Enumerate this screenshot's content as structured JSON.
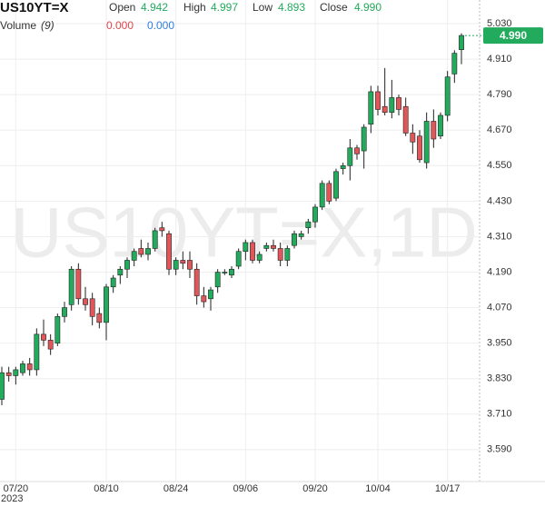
{
  "chart_data": {
    "type": "candlestick",
    "title": "US10YT=X",
    "watermark": "US10YT=X,1D",
    "stats": [
      {
        "name": "Open",
        "value": {
          "value": 4.942,
          "label": "4.942"
        }
      },
      {
        "name": "High",
        "value": {
          "value": 4.997,
          "label": "4.997"
        }
      },
      {
        "name": "Low",
        "value": {
          "value": 4.893,
          "label": "4.893"
        }
      },
      {
        "name": "Close",
        "value": {
          "value": 4.99,
          "label": "4.990"
        }
      }
    ],
    "volume": {
      "name": "Volume",
      "period": "(9)",
      "values": [
        {
          "value": 0,
          "label": "0.000",
          "color": "#e0474c"
        },
        {
          "value": 0,
          "label": "0.000",
          "color": "#2f7fe0"
        }
      ]
    },
    "last_price": {
      "value": 4.99,
      "label": "4.990"
    },
    "year_label": "2023",
    "up_color": "#22ab5c",
    "down_color": "#e0575a",
    "grid": true,
    "ylim": [
      3.482,
      5.11
    ],
    "yticks": [
      {
        "value": 3.59,
        "label": "3.590"
      },
      {
        "value": 3.71,
        "label": "3.710"
      },
      {
        "value": 3.83,
        "label": "3.830"
      },
      {
        "value": 3.95,
        "label": "3.950"
      },
      {
        "value": 4.07,
        "label": "4.070"
      },
      {
        "value": 4.19,
        "label": "4.190"
      },
      {
        "value": 4.31,
        "label": "4.310"
      },
      {
        "value": 4.43,
        "label": "4.430"
      },
      {
        "value": 4.55,
        "label": "4.550"
      },
      {
        "value": 4.67,
        "label": "4.670"
      },
      {
        "value": 4.79,
        "label": "4.790"
      },
      {
        "value": 4.91,
        "label": "4.910"
      },
      {
        "value": 5.03,
        "label": "5.030"
      }
    ],
    "categories": [
      null,
      null,
      "07/20",
      null,
      null,
      null,
      null,
      null,
      null,
      null,
      null,
      null,
      null,
      null,
      null,
      "08/10",
      null,
      null,
      null,
      null,
      null,
      null,
      null,
      null,
      null,
      "08/24",
      null,
      null,
      null,
      null,
      null,
      null,
      null,
      null,
      null,
      "09/06",
      null,
      null,
      null,
      null,
      null,
      null,
      null,
      null,
      null,
      "09/20",
      null,
      null,
      null,
      null,
      null,
      null,
      null,
      null,
      "10/04",
      null,
      null,
      null,
      null,
      null,
      null,
      null,
      null,
      null,
      "10/17",
      null,
      null
    ],
    "open": [
      3.76,
      3.85,
      3.84,
      3.85,
      3.88,
      3.86,
      3.98,
      3.96,
      3.95,
      4.04,
      4.08,
      4.2,
      4.1,
      4.1,
      4.05,
      4.02,
      4.14,
      4.18,
      4.2,
      4.23,
      4.27,
      4.25,
      4.27,
      4.34,
      4.32,
      4.2,
      4.23,
      4.23,
      4.2,
      4.11,
      4.1,
      4.14,
      4.19,
      4.18,
      4.21,
      4.26,
      4.29,
      4.23,
      4.27,
      4.28,
      4.27,
      4.23,
      4.28,
      4.31,
      4.34,
      4.36,
      4.41,
      4.49,
      4.44,
      4.54,
      4.55,
      4.61,
      4.6,
      4.69,
      4.8,
      4.75,
      4.73,
      4.78,
      4.75,
      4.66,
      4.65,
      4.56,
      4.7,
      4.65,
      4.72,
      4.86,
      4.942
    ],
    "high": [
      3.87,
      3.87,
      3.87,
      3.89,
      3.9,
      4.0,
      4.03,
      3.98,
      4.05,
      4.09,
      4.21,
      4.22,
      4.14,
      4.12,
      4.07,
      4.15,
      4.18,
      4.21,
      4.24,
      4.27,
      4.3,
      4.29,
      4.34,
      4.36,
      4.33,
      4.24,
      4.26,
      4.26,
      4.22,
      4.14,
      4.14,
      4.2,
      4.2,
      4.21,
      4.27,
      4.3,
      4.3,
      4.26,
      4.29,
      4.3,
      4.29,
      4.28,
      4.33,
      4.33,
      4.37,
      4.42,
      4.5,
      4.5,
      4.54,
      4.56,
      4.64,
      4.62,
      4.69,
      4.82,
      4.82,
      4.88,
      4.84,
      4.79,
      4.78,
      4.69,
      4.67,
      4.73,
      4.74,
      4.73,
      4.87,
      4.94,
      4.997
    ],
    "low": [
      3.74,
      3.82,
      3.81,
      3.84,
      3.84,
      3.84,
      3.94,
      3.91,
      3.94,
      4.02,
      4.06,
      4.08,
      4.06,
      4.01,
      4.0,
      3.96,
      4.12,
      4.15,
      4.17,
      4.21,
      4.24,
      4.23,
      4.26,
      4.31,
      4.18,
      4.18,
      4.2,
      4.17,
      4.08,
      4.07,
      4.06,
      4.12,
      4.18,
      4.17,
      4.2,
      4.23,
      4.22,
      4.22,
      4.26,
      4.26,
      4.21,
      4.21,
      4.27,
      4.3,
      4.32,
      4.34,
      4.4,
      4.42,
      4.43,
      4.52,
      4.5,
      4.57,
      4.54,
      4.66,
      4.72,
      4.72,
      4.71,
      4.72,
      4.65,
      4.59,
      4.56,
      4.54,
      4.61,
      4.64,
      4.7,
      4.83,
      4.893
    ],
    "close": [
      3.85,
      3.84,
      3.86,
      3.88,
      3.86,
      3.98,
      3.96,
      3.93,
      4.04,
      4.07,
      4.2,
      4.1,
      4.08,
      4.04,
      4.02,
      4.14,
      4.17,
      4.2,
      4.23,
      4.26,
      4.25,
      4.27,
      4.33,
      4.33,
      4.2,
      4.23,
      4.22,
      4.2,
      4.11,
      4.09,
      4.13,
      4.19,
      4.19,
      4.2,
      4.26,
      4.29,
      4.23,
      4.25,
      4.28,
      4.27,
      4.23,
      4.27,
      4.32,
      4.32,
      4.36,
      4.41,
      4.49,
      4.43,
      4.53,
      4.55,
      4.61,
      4.59,
      4.68,
      4.8,
      4.74,
      4.73,
      4.78,
      4.74,
      4.66,
      4.63,
      4.57,
      4.7,
      4.64,
      4.72,
      4.85,
      4.93,
      4.99
    ]
  }
}
